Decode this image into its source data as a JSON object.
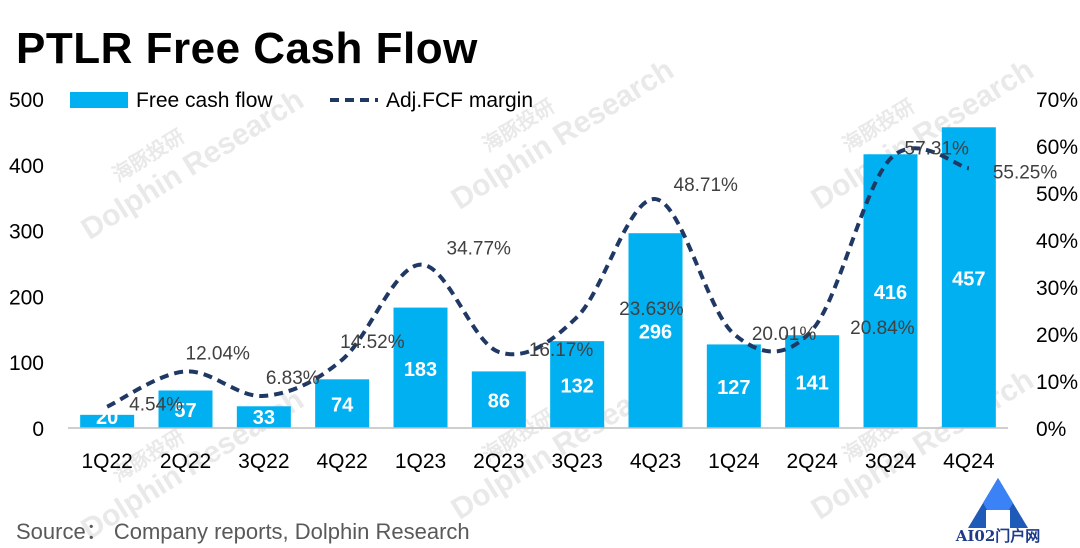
{
  "title": "PTLR Free Cash Flow",
  "source": "Source： Company reports, Dolphin Research",
  "watermark": "Dolphin Research",
  "watermark_cn": "海豚投研",
  "logo": {
    "letter": "A",
    "text": "AI02门户网"
  },
  "colors": {
    "bar": "#00b0f0",
    "line": "#1f3864",
    "bar_label": "#ffffff",
    "text": "#404040",
    "axis": "#000000"
  },
  "chart_data": {
    "type": "bar",
    "title": "PTLR Free Cash Flow",
    "categories": [
      "1Q22",
      "2Q22",
      "3Q22",
      "4Q22",
      "1Q23",
      "2Q23",
      "3Q23",
      "4Q23",
      "1Q24",
      "2Q24",
      "3Q24",
      "4Q24"
    ],
    "series": [
      {
        "name": "Free cash flow",
        "type": "bar",
        "axis": "left",
        "values": [
          20,
          57,
          33,
          74,
          183,
          86,
          132,
          296,
          127,
          141,
          416,
          457
        ],
        "labels": [
          "20",
          "57",
          "33",
          "74",
          "183",
          "86",
          "132",
          "296",
          "127",
          "141",
          "416",
          "457"
        ]
      },
      {
        "name": "Adj.FCF margin",
        "type": "line",
        "style": "dashed",
        "axis": "right",
        "values": [
          4.54,
          12.04,
          6.83,
          14.52,
          34.77,
          16.17,
          23.63,
          48.71,
          20.01,
          20.84,
          57.31,
          55.25
        ],
        "labels": [
          "4.54%",
          "12.04%",
          "6.83%",
          "14.52%",
          "34.77%",
          "16.17%",
          "23.63%",
          "48.71%",
          "20.01%",
          "20.84%",
          "57.31%",
          "55.25%"
        ]
      }
    ],
    "y_left": {
      "lim": [
        0,
        500
      ],
      "ticks": [
        "0",
        "100",
        "200",
        "300",
        "400",
        "500"
      ]
    },
    "y_right": {
      "lim": [
        0,
        70
      ],
      "ticks": [
        "0%",
        "10%",
        "20%",
        "30%",
        "40%",
        "50%",
        "60%",
        "70%"
      ]
    },
    "grid": false,
    "legend_position": "top-left"
  }
}
